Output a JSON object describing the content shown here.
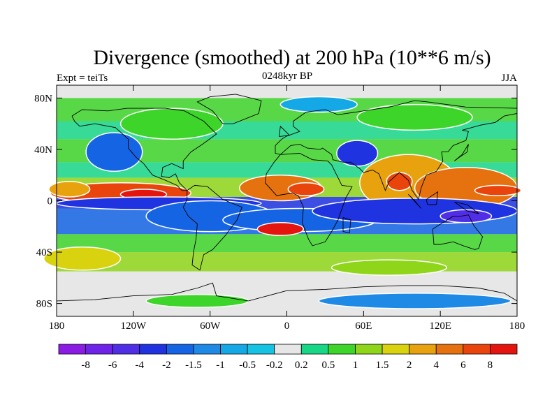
{
  "chart_data": {
    "type": "heatmap",
    "title": "Divergence (smoothed) at 200 hPa (10**6 m/s)",
    "subtitle_left": "Expt = teiTs",
    "subtitle_center": "0248kyr BP",
    "subtitle_right": "JJA",
    "x_ticks": [
      {
        "value": -180,
        "label": "180"
      },
      {
        "value": -120,
        "label": "120W"
      },
      {
        "value": -60,
        "label": "60W"
      },
      {
        "value": 0,
        "label": "0"
      },
      {
        "value": 60,
        "label": "60E"
      },
      {
        "value": 120,
        "label": "120E"
      },
      {
        "value": 180,
        "label": "180"
      }
    ],
    "y_ticks": [
      {
        "value": 80,
        "label": "80N"
      },
      {
        "value": 40,
        "label": "40N"
      },
      {
        "value": 0,
        "label": "0"
      },
      {
        "value": -40,
        "label": "40S"
      },
      {
        "value": -80,
        "label": "80S"
      }
    ],
    "xlim": [
      -180,
      180
    ],
    "ylim": [
      -90,
      90
    ],
    "colorbar": {
      "levels": [
        "-8",
        "-6",
        "-4",
        "-2",
        "-1.5",
        "-1",
        "-0.5",
        "-0.2",
        "0.2",
        "0.5",
        "1",
        "1.5",
        "2",
        "4",
        "6",
        "8"
      ],
      "colors": [
        "#8a1ce6",
        "#6f23e8",
        "#4f2ee6",
        "#1f33e0",
        "#1464e4",
        "#1e8ae6",
        "#14a9e6",
        "#16c3e3",
        "#e6e6e6",
        "#17d787",
        "#3ed52a",
        "#8fd61a",
        "#d8d20f",
        "#e7a20e",
        "#e5720e",
        "#e8440c",
        "#e4140e"
      ]
    },
    "regions": [
      {
        "lon": -130,
        "lat": 6,
        "rx": 55,
        "ry": 8,
        "level": 15
      },
      {
        "lon": -112,
        "lat": 5,
        "rx": 18,
        "ry": 4,
        "level": 16
      },
      {
        "lon": -5,
        "lat": 10,
        "rx": 32,
        "ry": 10,
        "level": 14
      },
      {
        "lon": 15,
        "lat": 9,
        "rx": 14,
        "ry": 5,
        "level": 15
      },
      {
        "lon": 95,
        "lat": 14,
        "rx": 38,
        "ry": 22,
        "level": 13
      },
      {
        "lon": 88,
        "lat": 15,
        "rx": 10,
        "ry": 7,
        "level": 15
      },
      {
        "lon": 140,
        "lat": 10,
        "rx": 40,
        "ry": 16,
        "level": 14
      },
      {
        "lon": 165,
        "lat": 8,
        "rx": 18,
        "ry": 4,
        "level": 15
      },
      {
        "lon": -170,
        "lat": 9,
        "rx": 16,
        "ry": 6,
        "level": 13
      },
      {
        "lon": -100,
        "lat": -2,
        "rx": 80,
        "ry": 5,
        "level": 3
      },
      {
        "lon": -60,
        "lat": -12,
        "rx": 50,
        "ry": 12,
        "level": 4
      },
      {
        "lon": 10,
        "lat": -15,
        "rx": 60,
        "ry": 9,
        "level": 4
      },
      {
        "lon": 100,
        "lat": -8,
        "rx": 80,
        "ry": 10,
        "level": 3
      },
      {
        "lon": 140,
        "lat": -12,
        "rx": 20,
        "ry": 5,
        "level": 2
      },
      {
        "lon": -135,
        "lat": 38,
        "rx": 22,
        "ry": 15,
        "level": 4
      },
      {
        "lon": 55,
        "lat": 37,
        "rx": 16,
        "ry": 10,
        "level": 3
      },
      {
        "lon": 25,
        "lat": 75,
        "rx": 30,
        "ry": 6,
        "level": 6
      },
      {
        "lon": -5,
        "lat": -22,
        "rx": 18,
        "ry": 5,
        "level": 16
      },
      {
        "lon": -160,
        "lat": -45,
        "rx": 30,
        "ry": 9,
        "level": 12
      },
      {
        "lon": 80,
        "lat": -52,
        "rx": 45,
        "ry": 6,
        "level": 11
      },
      {
        "lon": 100,
        "lat": -78,
        "rx": 75,
        "ry": 6,
        "level": 5
      },
      {
        "lon": -70,
        "lat": -78,
        "rx": 40,
        "ry": 5,
        "level": 10
      },
      {
        "lon": -90,
        "lat": 60,
        "rx": 40,
        "ry": 12,
        "level": 10
      },
      {
        "lon": 100,
        "lat": 65,
        "rx": 45,
        "ry": 10,
        "level": 10
      }
    ]
  }
}
